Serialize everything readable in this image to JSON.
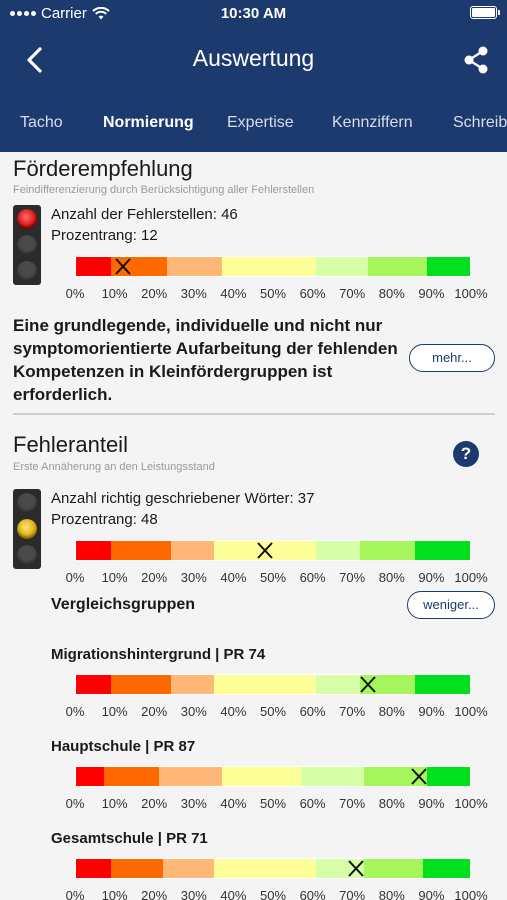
{
  "status_bar": {
    "carrier": "Carrier",
    "time": "10:30 AM"
  },
  "nav": {
    "title": "Auswertung",
    "back_icon": "chevron-left-icon",
    "share_icon": "share-icon"
  },
  "tabs": [
    "Tacho",
    "Normierung",
    "Expertise",
    "Kennziffern",
    "Schreib"
  ],
  "active_tab": "Normierung",
  "colors": {
    "header": "#1d3a6e",
    "segments": [
      "#ff0000",
      "#ff6a00",
      "#ffb877",
      "#ffff99",
      "#d7ffa8",
      "#a5f55c",
      "#00e01f"
    ]
  },
  "foerderempfehlung": {
    "title": "Förderempfehlung",
    "subtitle": "Feindifferenzierung durch Berücksichtigung aller Fehlerstellen",
    "traffic_light": "red",
    "line1": "Anzahl der Fehlerstellen: 46",
    "line2": "Prozentrang: 12",
    "marker": 12,
    "text": "Eine grundlegende, individuelle und nicht nur symptomorientierte Aufarbeitung der fehlenden Kompetenzen in Kleinfördergruppen ist erforderlich.",
    "more_label": "mehr..."
  },
  "fehleranteil": {
    "title": "Fehleranteil",
    "subtitle": "Erste Annäherung an den Leistungsstand",
    "help_icon": "question-icon",
    "traffic_light": "yellow",
    "line1": "Anzahl richtig geschriebener Wörter: 37",
    "line2": "Prozentrang: 48",
    "marker": 48
  },
  "vergleichsgruppen": {
    "title": "Vergleichsgruppen",
    "less_label": "weniger...",
    "groups": [
      {
        "label": "Migrationshintergrund | PR 74",
        "marker": 74
      },
      {
        "label": "Hauptschule | PR 87",
        "marker": 87
      },
      {
        "label": "Gesamtschule | PR 71",
        "marker": 71
      }
    ]
  },
  "ticks": [
    "0%",
    "10%",
    "20%",
    "30%",
    "40%",
    "50%",
    "60%",
    "70%",
    "80%",
    "90%",
    "100%"
  ]
}
